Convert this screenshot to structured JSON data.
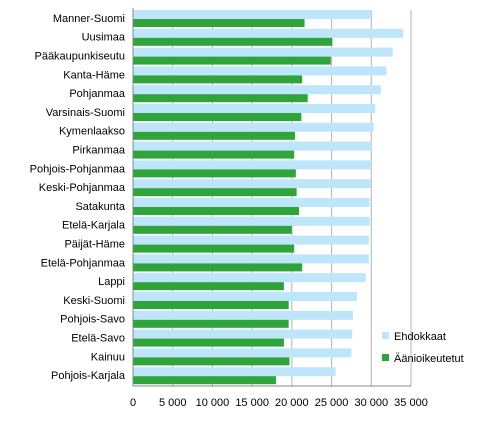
{
  "chart_data": {
    "type": "bar",
    "orientation": "horizontal",
    "categories": [
      "Manner-Suomi",
      "Uusimaa",
      "Pääkaupunkiseutu",
      "Kanta-Häme",
      "Pohjanmaa",
      "Varsinais-Suomi",
      "Kymenlaakso",
      "Pirkanmaa",
      "Pohjois-Pohjanmaa",
      "Keski-Pohjanmaa",
      "Satakunta",
      "Etelä-Karjala",
      "Päijät-Häme",
      "Etelä-Pohjanmaa",
      "Lappi",
      "Keski-Suomi",
      "Pohjois-Savo",
      "Etelä-Savo",
      "Kainuu",
      "Pohjois-Karjala"
    ],
    "series": [
      {
        "name": "Ehdokkaat",
        "color": "#bde6fa",
        "values": [
          30000,
          34000,
          32700,
          31900,
          31200,
          30500,
          30300,
          30100,
          30000,
          29900,
          29800,
          29800,
          29700,
          29700,
          29300,
          28200,
          27700,
          27600,
          27500,
          25500
        ]
      },
      {
        "name": "Äänioikeutetut",
        "color": "#2ea43a",
        "values": [
          21600,
          25100,
          24900,
          21300,
          22000,
          21200,
          20400,
          20300,
          20500,
          20600,
          20900,
          20000,
          20300,
          21300,
          19000,
          19600,
          19600,
          19000,
          19700,
          18000
        ]
      }
    ],
    "xlim": [
      0,
      35000
    ],
    "xticks": [
      "0",
      "5 000",
      "10 000",
      "15 000",
      "20 000",
      "25 000",
      "30 000",
      "35 000"
    ],
    "grid": "vertical",
    "legend_position": "right"
  }
}
